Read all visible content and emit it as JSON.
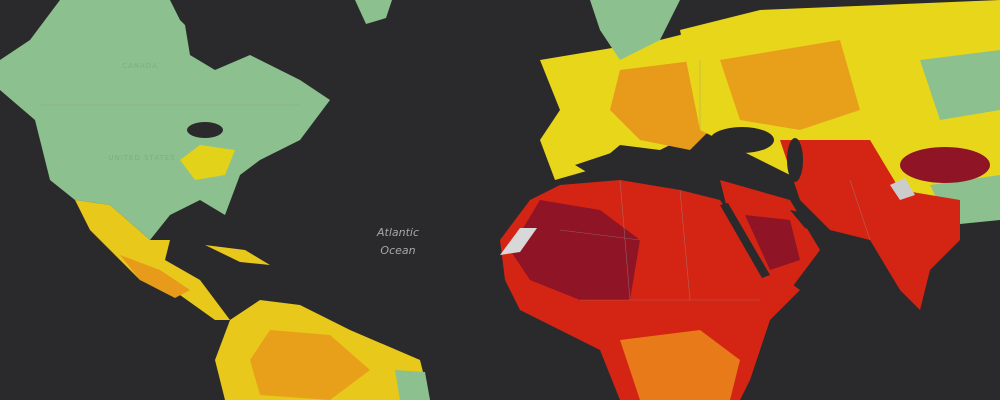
{
  "ocean_label": {
    "line1": "Atlantic",
    "line2": "Ocean"
  },
  "country_labels": [
    "CANADA",
    "UNITED STATES"
  ]
}
